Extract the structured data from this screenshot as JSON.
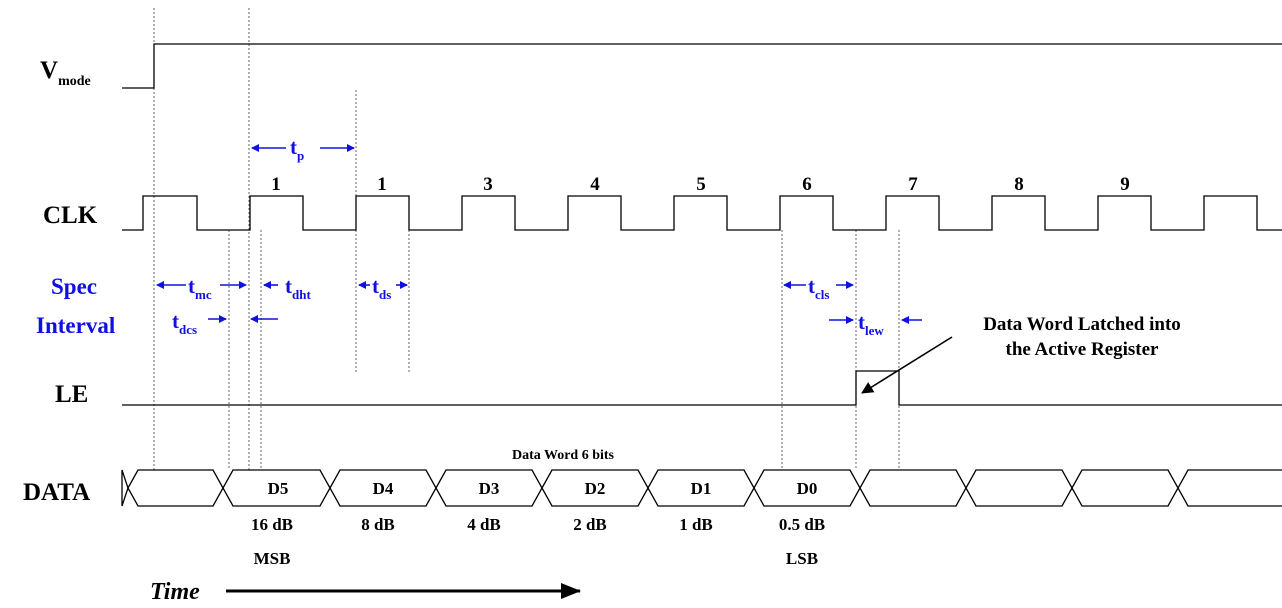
{
  "signals": {
    "vmode": {
      "main": "V",
      "sub": "mode"
    },
    "clk": "CLK",
    "spec_line1": "Spec",
    "spec_line2": "Interval",
    "le": "LE",
    "data": "DATA"
  },
  "clock_numbers": [
    "1",
    "1",
    "3",
    "4",
    "5",
    "6",
    "7",
    "8",
    "9"
  ],
  "timing": {
    "tp": {
      "main": "t",
      "sub": "p"
    },
    "tmc": {
      "main": "t",
      "sub": "mc"
    },
    "tdht": {
      "main": "t",
      "sub": "dht"
    },
    "tds": {
      "main": "t",
      "sub": "ds"
    },
    "tdcs": {
      "main": "t",
      "sub": "dcs"
    },
    "tcls": {
      "main": "t",
      "sub": "cls"
    },
    "tlew": {
      "main": "t",
      "sub": "lew"
    }
  },
  "data_word_title": "Data Word 6 bits",
  "bits": [
    "D5",
    "D4",
    "D3",
    "D2",
    "D1",
    "D0"
  ],
  "weights": [
    "16 dB",
    "8 dB",
    "4 dB",
    "2 dB",
    "1 dB",
    "0.5 dB"
  ],
  "msb": "MSB",
  "lsb": "LSB",
  "annotation": {
    "line1": "Data Word Latched into",
    "line2": "the Active Register"
  },
  "time_label": "Time",
  "colors": {
    "spec_blue": "#1010e0",
    "line": "#000000"
  }
}
